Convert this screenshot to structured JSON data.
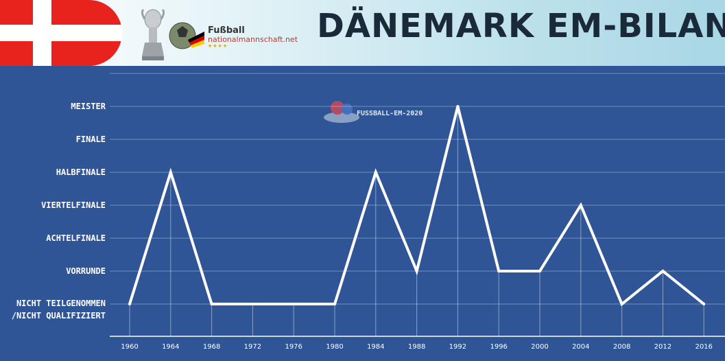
{
  "header": {
    "title": "DÄNEMARK EM-BILANZ",
    "logo_line1": "Fußball",
    "logo_line2": "nationalmannschaft.net",
    "logo_stars": "★★★★",
    "flag_icon": "denmark-flag-icon",
    "trophy_icon": "em-trophy-icon"
  },
  "watermark": {
    "text": "FUSSBALL-EM-2020"
  },
  "chart_data": {
    "type": "line",
    "title": "DÄNEMARK EM-BILANZ",
    "categories": [
      "1960",
      "1964",
      "1968",
      "1972",
      "1976",
      "1980",
      "1984",
      "1988",
      "1992",
      "1996",
      "2000",
      "2004",
      "2008",
      "2012",
      "2016"
    ],
    "y_categories": [
      "Nicht Teilgenommen /Nicht qualifiziert",
      "Vorrunde",
      "Achtelfinale",
      "Viertelfinale",
      "Halbfinale",
      "Finale",
      "Meister"
    ],
    "y_labels_display": [
      {
        "line1": "NICHT TEILGENOMMEN",
        "line2": "/NICHT QUALIFIZIERT"
      },
      {
        "line1": "VORRUNDE"
      },
      {
        "line1": "ACHTELFINALE"
      },
      {
        "line1": "VIERTELFINALE"
      },
      {
        "line1": "HALBFINALE"
      },
      {
        "line1": "FINALE"
      },
      {
        "line1": "MEISTER"
      }
    ],
    "series": [
      {
        "values": [
          0,
          4,
          0,
          0,
          0,
          0,
          4,
          1,
          6,
          1,
          1,
          3,
          0,
          1,
          0
        ]
      }
    ],
    "grid": true,
    "line_color": "#ffffff",
    "background": "#2f5597"
  }
}
